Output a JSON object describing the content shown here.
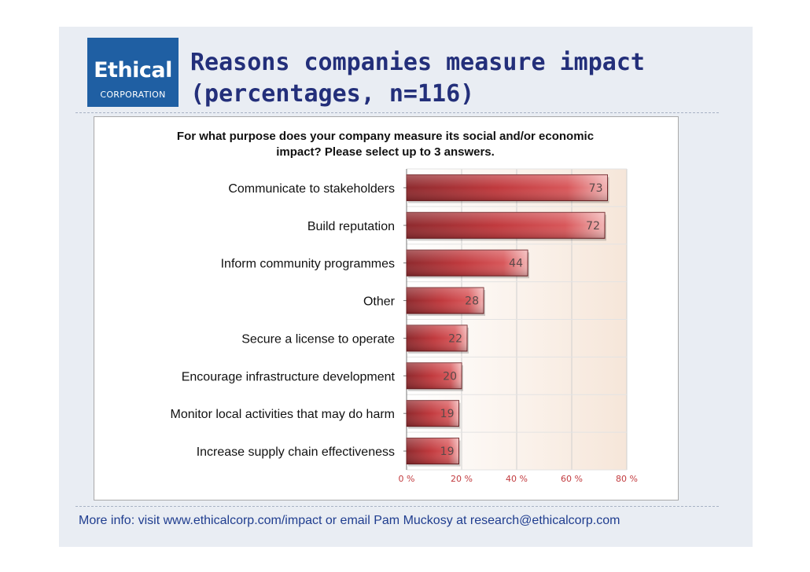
{
  "header": {
    "logo_main": "Ethical",
    "logo_sub": "CORPORATION",
    "title_line1": "Reasons companies measure impact",
    "title_line2": "(percentages, n=116)"
  },
  "chart_data": {
    "type": "bar",
    "orientation": "horizontal",
    "title": "For what purpose does your company measure its social and/or economic impact? Please select up to 3 answers.",
    "title_line1": "For what purpose does your company measure its social and/or economic",
    "title_line2": "impact? Please select up to 3 answers.",
    "categories": [
      "Communicate to stakeholders",
      "Build reputation",
      "Inform community programmes",
      "Other",
      "Secure a license to operate",
      "Encourage infrastructure development",
      "Monitor local activities that may do harm",
      "Increase supply chain effectiveness"
    ],
    "values": [
      73,
      72,
      44,
      28,
      22,
      20,
      19,
      19
    ],
    "xlim": [
      0,
      80
    ],
    "xticks": [
      0,
      20,
      40,
      60,
      80
    ],
    "xtick_labels": [
      "0 %",
      "20 %",
      "40 %",
      "60 %",
      "80 %"
    ],
    "grid": true,
    "bar_color": "#c0393d"
  },
  "footer": {
    "text": "More info: visit www.ethicalcorp.com/impact or email Pam Muckosy at research@ethicalcorp.com"
  }
}
